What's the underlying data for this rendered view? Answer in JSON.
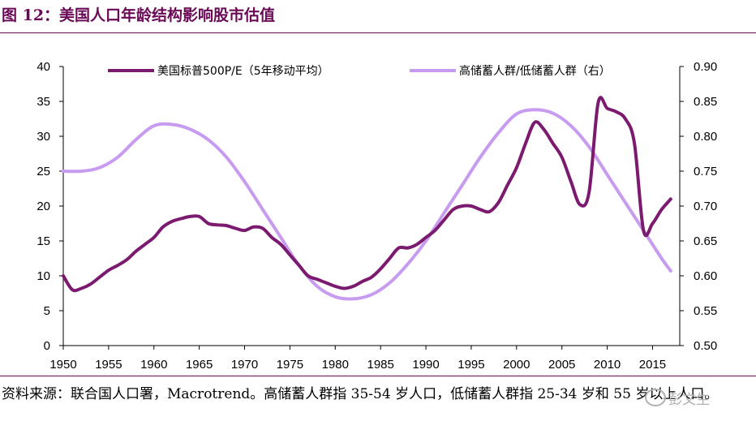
{
  "header": {
    "title": "图 12：美国人口年龄结构影响股市估值"
  },
  "footer": {
    "source": "资料来源：联合国人口署，Macrotrend。高储蓄人群指 35-54 岁人口，低储蓄人群指 25-34 岁和 55 岁以上人口。",
    "watermark": "彭文生"
  },
  "colors": {
    "pe_line": "#7b1a6e",
    "ratio_line": "#c79cf0",
    "accent": "#6a0a56"
  },
  "chart_data": {
    "type": "line",
    "title": "",
    "xlabel": "",
    "ylabel": "",
    "x_range": [
      1950,
      2018
    ],
    "x_ticks": [
      1950,
      1955,
      1960,
      1965,
      1970,
      1975,
      1980,
      1985,
      1990,
      1995,
      2000,
      2005,
      2010,
      2015
    ],
    "y_left": {
      "range": [
        0,
        40
      ],
      "ticks": [
        "0",
        "5",
        "10",
        "15",
        "20",
        "25",
        "30",
        "35",
        "40"
      ]
    },
    "y_right": {
      "range": [
        0.5,
        0.9
      ],
      "ticks": [
        "0.50",
        "0.55",
        "0.60",
        "0.65",
        "0.70",
        "0.75",
        "0.80",
        "0.85",
        "0.90"
      ]
    },
    "legend_position": "top",
    "series": [
      {
        "name": "美国标普500P/E（5年移动平均）",
        "axis": "left",
        "x": [
          1950,
          1951,
          1952,
          1953,
          1954,
          1955,
          1956,
          1957,
          1958,
          1959,
          1960,
          1961,
          1962,
          1963,
          1964,
          1965,
          1966,
          1967,
          1968,
          1969,
          1970,
          1971,
          1972,
          1973,
          1974,
          1975,
          1976,
          1977,
          1978,
          1979,
          1980,
          1981,
          1982,
          1983,
          1984,
          1985,
          1986,
          1987,
          1988,
          1989,
          1990,
          1991,
          1992,
          1993,
          1994,
          1995,
          1996,
          1997,
          1998,
          1999,
          2000,
          2001,
          2002,
          2003,
          2004,
          2005,
          2006,
          2007,
          2008,
          2009,
          2010,
          2011,
          2012,
          2013,
          2014,
          2015,
          2016,
          2017
        ],
        "values": [
          10,
          8,
          8.2,
          8.8,
          9.8,
          10.8,
          11.5,
          12.3,
          13.5,
          14.5,
          15.5,
          17,
          17.8,
          18.2,
          18.5,
          18.5,
          17.5,
          17.3,
          17.2,
          16.8,
          16.5,
          17,
          16.8,
          15.5,
          14.5,
          13,
          11.5,
          10,
          9.5,
          9,
          8.5,
          8.2,
          8.5,
          9.2,
          9.8,
          11,
          12.5,
          14,
          14,
          14.5,
          15.5,
          16.5,
          18,
          19.5,
          20,
          20,
          19.5,
          19.2,
          20.5,
          23,
          25.5,
          29,
          32,
          31,
          29,
          27,
          23.5,
          20.2,
          22,
          34.8,
          34,
          33.5,
          32.5,
          29,
          16.5,
          17.5,
          19.5,
          21
        ]
      },
      {
        "name": "高储蓄人群/低储蓄人群（右）",
        "axis": "right",
        "x": [
          1950,
          1952,
          1954,
          1956,
          1958,
          1960,
          1962,
          1964,
          1966,
          1968,
          1970,
          1972,
          1974,
          1976,
          1978,
          1980,
          1982,
          1984,
          1986,
          1988,
          1990,
          1992,
          1994,
          1996,
          1998,
          2000,
          2002,
          2004,
          2006,
          2008,
          2010,
          2012,
          2014,
          2016,
          2017
        ],
        "values": [
          0.75,
          0.75,
          0.755,
          0.77,
          0.795,
          0.815,
          0.817,
          0.81,
          0.795,
          0.77,
          0.735,
          0.695,
          0.655,
          0.615,
          0.585,
          0.57,
          0.567,
          0.573,
          0.59,
          0.617,
          0.65,
          0.69,
          0.73,
          0.77,
          0.805,
          0.832,
          0.838,
          0.833,
          0.815,
          0.785,
          0.745,
          0.705,
          0.665,
          0.625,
          0.607
        ]
      }
    ]
  }
}
